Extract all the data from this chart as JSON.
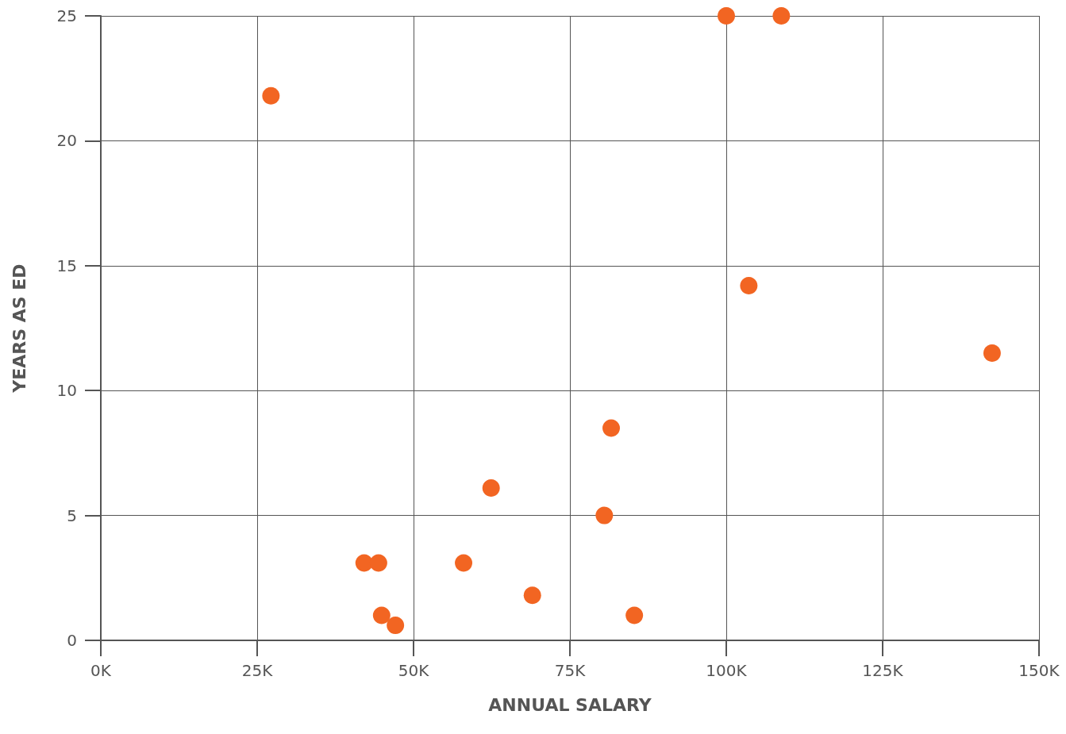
{
  "chart_data": {
    "type": "scatter",
    "xlabel": "ANNUAL SALARY",
    "ylabel": "YEARS AS ED",
    "x": [
      27200,
      100000,
      108800,
      103600,
      142500,
      81600,
      62400,
      80500,
      42100,
      44400,
      58000,
      69000,
      44900,
      47100,
      85300
    ],
    "series": [
      {
        "color": "#f26522",
        "values": [
          21.8,
          25,
          25,
          14.2,
          11.5,
          8.5,
          6.1,
          5,
          3.1,
          3.1,
          3.1,
          1.8,
          1,
          0.6,
          1
        ]
      }
    ],
    "xlim": [
      0,
      150000
    ],
    "xticks": [
      {
        "value": 0,
        "label": "0K"
      },
      {
        "value": 25000,
        "label": "25K"
      },
      {
        "value": 50000,
        "label": "50K"
      },
      {
        "value": 75000,
        "label": "75K"
      },
      {
        "value": 100000,
        "label": "100K"
      },
      {
        "value": 125000,
        "label": "125K"
      },
      {
        "value": 150000,
        "label": "150K"
      }
    ],
    "ylim": [
      0,
      25
    ],
    "yticks": [
      0,
      5,
      10,
      15,
      20,
      25
    ],
    "grid": true,
    "marker": "circle"
  }
}
